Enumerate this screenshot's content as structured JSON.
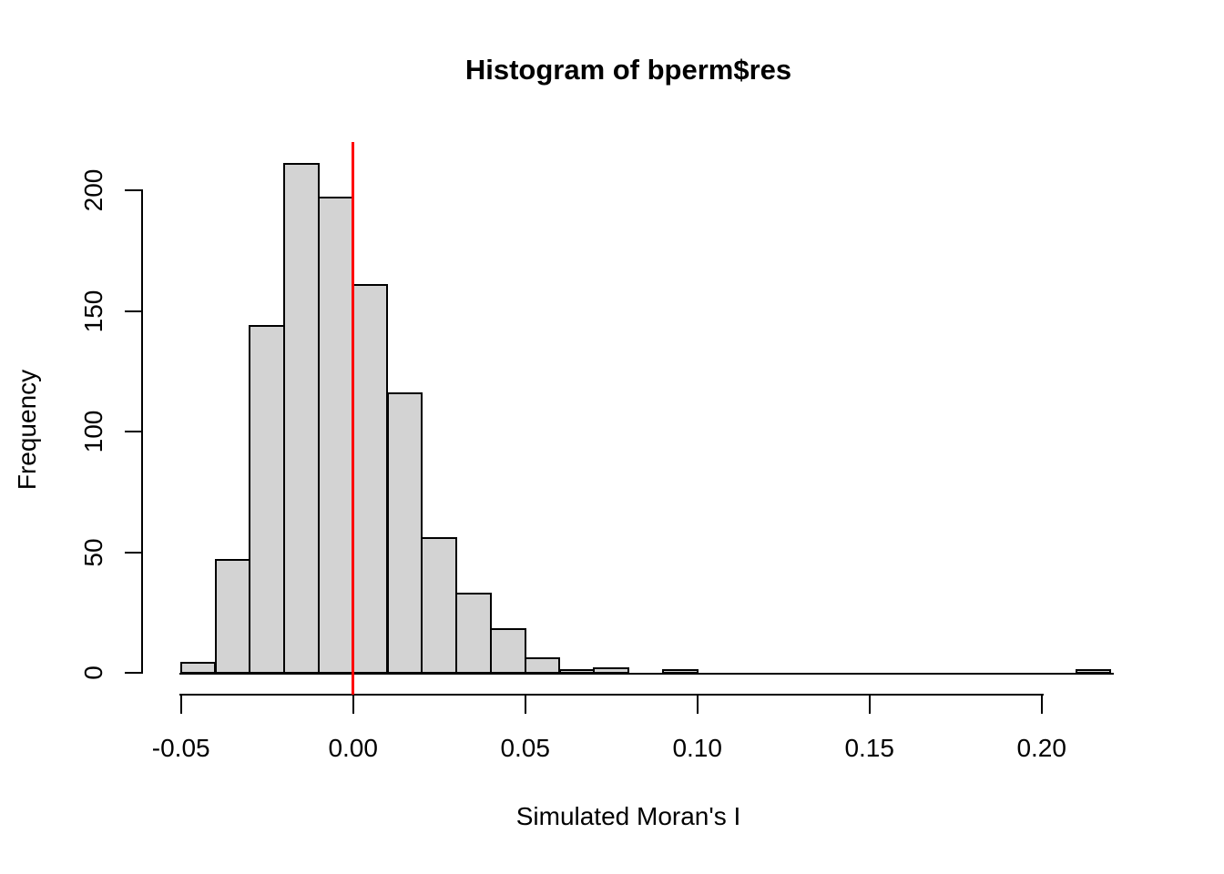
{
  "chart_data": {
    "type": "histogram",
    "title": "Histogram of bperm$res",
    "xlabel": "Simulated Moran's I",
    "ylabel": "Frequency",
    "bin_width": 0.01,
    "bin_starts": [
      -0.05,
      -0.04,
      -0.03,
      -0.02,
      -0.01,
      0.0,
      0.01,
      0.02,
      0.03,
      0.04,
      0.05,
      0.06,
      0.07,
      0.08,
      0.09,
      0.1,
      0.11,
      0.12,
      0.13,
      0.14,
      0.15,
      0.16,
      0.17,
      0.18,
      0.19,
      0.2,
      0.21
    ],
    "counts": [
      4,
      47,
      144,
      211,
      197,
      161,
      116,
      56,
      33,
      18,
      6,
      1,
      2,
      0,
      1,
      0,
      0,
      0,
      0,
      0,
      0,
      0,
      0,
      0,
      0,
      0,
      1
    ],
    "x_ticks": [
      -0.05,
      0.0,
      0.05,
      0.1,
      0.15,
      0.2
    ],
    "x_tick_labels": [
      "-0.05",
      "0.00",
      "0.05",
      "0.10",
      "0.15",
      "0.20"
    ],
    "y_ticks": [
      0,
      50,
      100,
      150,
      200
    ],
    "y_tick_labels": [
      "0",
      "50",
      "100",
      "150",
      "200"
    ],
    "xlim": [
      -0.05,
      0.22
    ],
    "ylim": [
      0,
      211
    ],
    "grid": false,
    "legend": null,
    "vline": {
      "x": 0,
      "color": "#FF0000"
    },
    "bar_fill": "#D3D3D3",
    "bar_border": "#000000",
    "axis_color": "#000000",
    "background": "#FFFFFF"
  }
}
